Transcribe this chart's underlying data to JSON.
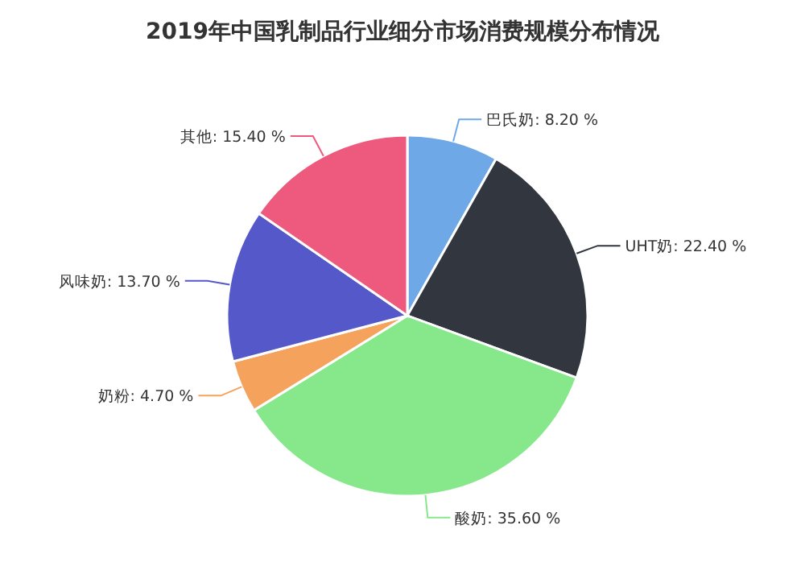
{
  "chart_data": {
    "type": "pie",
    "title": "2019年中国乳制品行业细分市场消费规模分布情况",
    "categories": [
      "巴氏奶",
      "UHT奶",
      "酸奶",
      "奶粉",
      "风味奶",
      "其他"
    ],
    "values": [
      8.2,
      22.4,
      35.6,
      4.7,
      13.7,
      15.4
    ],
    "value_labels": [
      "8.20 %",
      "22.40 %",
      "35.60 %",
      "4.70 %",
      "13.70 %",
      "15.40 %"
    ],
    "colors": [
      "#6fa8e6",
      "#32363f",
      "#86e88a",
      "#f5a35c",
      "#5558c8",
      "#ee5a7e"
    ]
  }
}
